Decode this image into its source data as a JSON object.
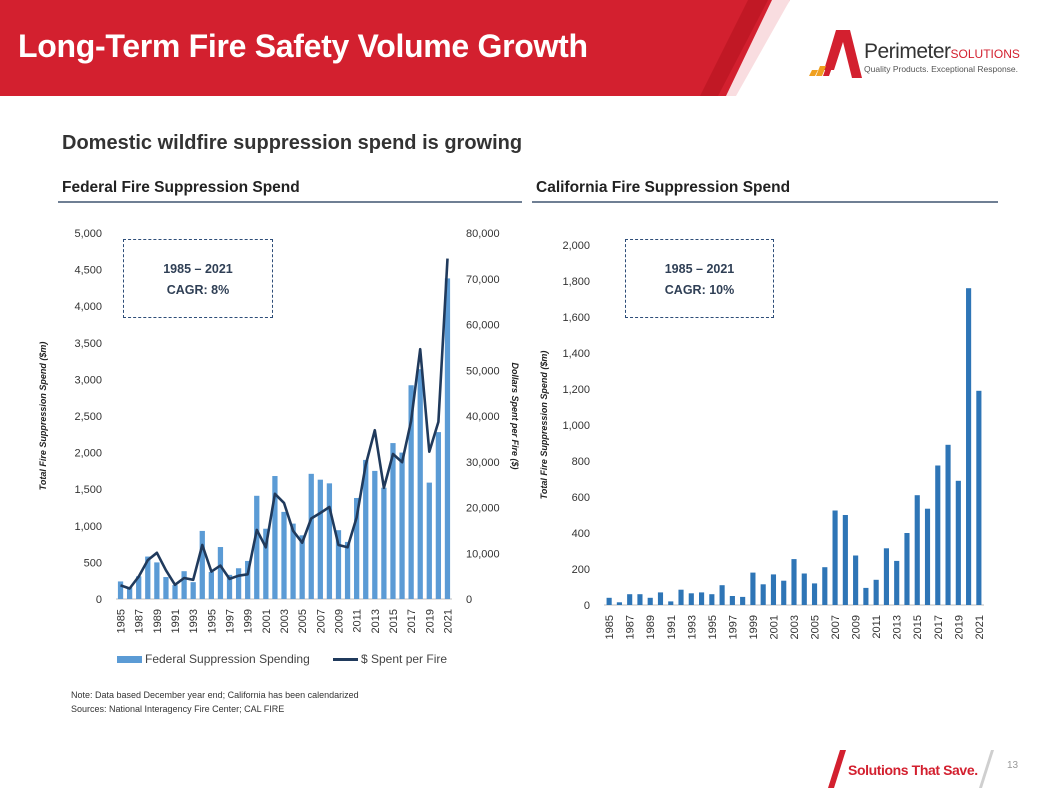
{
  "header": {
    "title": "Long-Term Fire Safety Volume Growth"
  },
  "logo": {
    "name": "Perimeter",
    "name_suffix": "SOLUTIONS",
    "tagline": "Quality Products. Exceptional Response."
  },
  "subtitle": "Domestic wildfire suppression spend is growing",
  "colors": {
    "brand_red": "#d3202f",
    "bar_blue": "#5b9bd5",
    "bar_dark_blue": "#2e75b6",
    "line_navy": "#203a5c"
  },
  "federal": {
    "section_title": "Federal Fire Suppression Spend",
    "cagr_period": "1985 – 2021",
    "cagr_value": "CAGR: 8%",
    "legend_bar": "Federal Suppression Spending",
    "legend_line": "$ Spent per Fire"
  },
  "california": {
    "section_title": "California Fire Suppression Spend",
    "cagr_period": "1985 – 2021",
    "cagr_value": "CAGR: 10%"
  },
  "chart_data": [
    {
      "type": "bar",
      "title": "Federal Fire Suppression Spend",
      "x": [
        1985,
        1986,
        1987,
        1988,
        1989,
        1990,
        1991,
        1992,
        1993,
        1994,
        1995,
        1996,
        1997,
        1998,
        1999,
        2000,
        2001,
        2002,
        2003,
        2004,
        2005,
        2006,
        2007,
        2008,
        2009,
        2010,
        2011,
        2012,
        2013,
        2014,
        2015,
        2016,
        2017,
        2018,
        2019,
        2020,
        2021
      ],
      "x_tick_labels": [
        "1985",
        "1987",
        "1989",
        "1991",
        "1993",
        "1995",
        "1997",
        "1999",
        "2001",
        "2003",
        "2005",
        "2007",
        "2009",
        "2011",
        "2013",
        "2015",
        "2017",
        "2019",
        "2021"
      ],
      "ylabel": "Total Fire Suppression Spend ($m)",
      "y2label": "Dollars Spent per Fire ($)",
      "ylim": [
        0,
        5000
      ],
      "y_ticks": [
        "0",
        "500",
        "1,000",
        "1,500",
        "2,000",
        "2,500",
        "3,000",
        "3,500",
        "4,000",
        "4,500",
        "5,000"
      ],
      "y2lim": [
        0,
        80000
      ],
      "y2_ticks": [
        "0",
        "10,000",
        "20,000",
        "30,000",
        "40,000",
        "50,000",
        "60,000",
        "70,000",
        "80,000"
      ],
      "legend_position": "bottom",
      "grid": false,
      "series": [
        {
          "name": "Federal Suppression Spending",
          "type": "bar",
          "axis": "left",
          "values": [
            240,
            160,
            310,
            580,
            500,
            300,
            190,
            380,
            230,
            930,
            370,
            710,
            330,
            420,
            520,
            1410,
            960,
            1680,
            1190,
            1030,
            870,
            1710,
            1630,
            1580,
            940,
            780,
            1380,
            1900,
            1750,
            1520,
            2130,
            2000,
            2920,
            3140,
            1590,
            2280,
            4380
          ]
        },
        {
          "name": "$ Spent per Fire",
          "type": "line",
          "axis": "right",
          "values": [
            3000,
            2300,
            4900,
            8500,
            10100,
            6300,
            3100,
            4600,
            4200,
            11800,
            6000,
            7300,
            4400,
            5100,
            5400,
            15100,
            11300,
            23000,
            21000,
            14900,
            12300,
            17600,
            18800,
            20100,
            11800,
            11300,
            17800,
            29300,
            36900,
            24300,
            31700,
            29900,
            38900,
            54600,
            32200,
            38700,
            74400
          ]
        }
      ]
    },
    {
      "type": "bar",
      "title": "California Fire Suppression Spend",
      "x": [
        1985,
        1986,
        1987,
        1988,
        1989,
        1990,
        1991,
        1992,
        1993,
        1994,
        1995,
        1996,
        1997,
        1998,
        1999,
        2000,
        2001,
        2002,
        2003,
        2004,
        2005,
        2006,
        2007,
        2008,
        2009,
        2010,
        2011,
        2012,
        2013,
        2014,
        2015,
        2016,
        2017,
        2018,
        2019,
        2020,
        2021
      ],
      "x_tick_labels": [
        "1985",
        "1987",
        "1989",
        "1991",
        "1993",
        "1995",
        "1997",
        "1999",
        "2001",
        "2003",
        "2005",
        "2007",
        "2009",
        "2011",
        "2013",
        "2015",
        "2017",
        "2019",
        "2021"
      ],
      "ylabel": "Total Fire Suppression Spend ($m)",
      "ylim": [
        0,
        2000
      ],
      "y_ticks": [
        "0",
        "200",
        "400",
        "600",
        "800",
        "1,000",
        "1,200",
        "1,400",
        "1,600",
        "1,800",
        "2,000"
      ],
      "grid": false,
      "series": [
        {
          "type": "bar",
          "values": [
            40,
            15,
            60,
            60,
            40,
            70,
            20,
            85,
            65,
            70,
            60,
            110,
            50,
            45,
            180,
            115,
            170,
            135,
            255,
            175,
            120,
            210,
            525,
            500,
            275,
            95,
            140,
            315,
            245,
            400,
            610,
            535,
            775,
            890,
            690,
            1760,
            1190
          ]
        }
      ]
    }
  ],
  "footnotes": {
    "note": "Note: Data based December year end; California has been calendarized",
    "sources": "Sources: National Interagency Fire Center; CAL FIRE"
  },
  "footer": {
    "tagline": "Solutions That Save.",
    "page_number": "13"
  }
}
